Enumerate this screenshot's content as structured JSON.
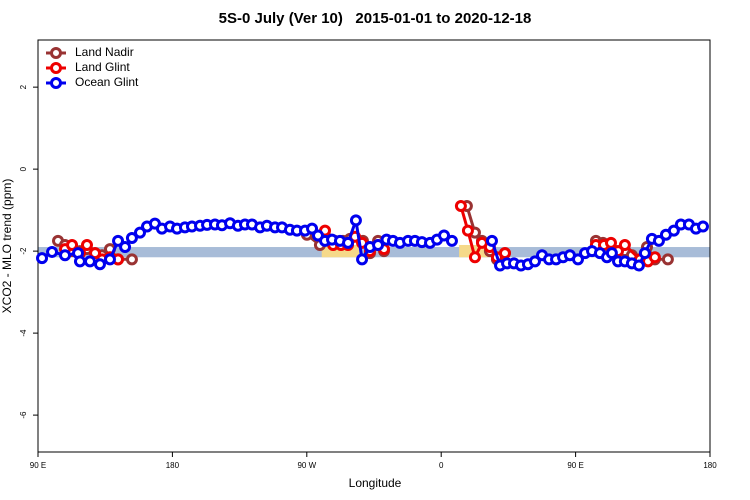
{
  "chart_data": {
    "type": "line",
    "title": "5S-0 July (Ver 10)   2015-01-01 to 2020-12-18",
    "xlabel": "Longitude",
    "ylabel": "XCO2 - MLO trend (ppm)",
    "xlim": [
      90,
      540
    ],
    "ylim": [
      -6.9,
      3.15
    ],
    "xticks": [
      {
        "value": 90,
        "label": "90 E"
      },
      180,
      {
        "value": 270,
        "label": "90 W"
      },
      {
        "value": 360,
        "label": "0"
      },
      {
        "value": 450,
        "label": "90 E"
      },
      {
        "value": 540,
        "label": "180"
      }
    ],
    "yticks": [
      2,
      0,
      -2,
      -4,
      -6
    ],
    "legend": "top-left",
    "reference_band": {
      "ylim": [
        -2.15,
        -1.9
      ],
      "color": "#a8bcd8"
    },
    "highlights": {
      "color": "#f5d98a",
      "regions": [
        {
          "xlim": [
            280,
            305
          ],
          "ylim": [
            -2.15,
            -1.85
          ]
        },
        {
          "xlim": [
            372,
            392
          ],
          "ylim": [
            -2.15,
            -1.85
          ]
        }
      ]
    },
    "series": [
      {
        "name": "Land Nadir",
        "color": "#993333",
        "x": [
          103.4,
          108.1,
          112.8,
          118.1,
          122.8,
          128.2,
          132.9,
          138.2,
          143.6,
          152.9,
          null,
          270.1,
          278.8,
          284.2,
          288.9,
          294.2,
          298.9,
          307.6,
          312.3,
          317.7,
          321.7,
          null,
          377.2,
          382.6,
          387.3,
          392.6,
          397.3,
          402.7,
          null,
          463.6,
          468.3,
          473.7,
          478.4,
          483.0,
          487.7,
          493.1,
          497.8,
          503.1,
          511.8
        ],
        "values": [
          -1.75,
          -1.85,
          -2.0,
          -2.0,
          -1.95,
          -2.05,
          -2.1,
          -1.95,
          -2.2,
          -2.2,
          null,
          -1.6,
          -1.85,
          -1.7,
          -1.75,
          -1.75,
          -1.7,
          -1.75,
          -2.05,
          -1.75,
          -2.0,
          null,
          -0.9,
          -1.55,
          -1.75,
          -2.0,
          -2.2,
          -2.05,
          null,
          -1.75,
          -1.8,
          -1.9,
          -2.0,
          -2.0,
          -2.1,
          -2.2,
          -1.9,
          -2.2,
          -2.2
        ]
      },
      {
        "name": "Land Glint",
        "color": "#ee0000",
        "x": [
          108.1,
          112.8,
          118.1,
          122.8,
          128.2,
          132.9,
          138.2,
          143.6,
          null,
          282.2,
          287.6,
          292.9,
          297.6,
          302.3,
          307.0,
          312.3,
          317.7,
          321.7,
          null,
          373.2,
          377.9,
          382.6,
          387.3,
          392.6,
          397.3,
          402.7,
          null,
          463.6,
          469.0,
          473.7,
          478.4,
          483.0,
          493.1,
          498.5,
          503.1
        ],
        "values": [
          -1.95,
          -1.85,
          -2.05,
          -1.85,
          -2.05,
          -2.2,
          -2.15,
          -2.2,
          null,
          -1.5,
          -1.85,
          -1.85,
          -1.85,
          -1.65,
          -1.8,
          -2.0,
          -1.85,
          -1.95,
          null,
          -0.9,
          -1.5,
          -2.15,
          -1.8,
          -1.9,
          -2.15,
          -2.05,
          null,
          -1.85,
          -1.85,
          -1.8,
          -2.0,
          -1.85,
          -2.2,
          -2.25,
          -2.15
        ]
      },
      {
        "name": "Ocean Glint",
        "color": "#0000ee",
        "x": [
          92.7,
          99.4,
          108.1,
          116.8,
          118.1,
          124.8,
          131.5,
          138.2,
          143.6,
          148.3,
          152.9,
          158.3,
          163.0,
          168.3,
          173.0,
          178.4,
          183.1,
          188.4,
          193.1,
          198.5,
          203.2,
          208.5,
          213.2,
          218.6,
          223.9,
          228.6,
          233.3,
          238.7,
          243.3,
          248.7,
          253.4,
          258.7,
          263.4,
          268.8,
          273.5,
          277.5,
          282.2,
          286.9,
          292.2,
          297.6,
          302.9,
          307.0,
          312.3,
          317.7,
          323.4,
          327.7,
          332.4,
          337.8,
          342.4,
          347.1,
          352.5,
          357.2,
          361.9,
          367.2,
          null,
          394.0,
          399.4,
          404.1,
          408.7,
          413.4,
          418.1,
          422.8,
          427.5,
          432.2,
          436.9,
          441.6,
          446.2,
          451.6,
          456.3,
          461.0,
          466.3,
          471.0,
          474.3,
          478.4,
          483.0,
          487.7,
          492.4,
          496.4,
          501.1,
          505.8,
          510.5,
          515.8,
          520.5,
          525.9,
          530.6,
          535.3
        ],
        "values": [
          -2.17,
          -2.02,
          -2.1,
          -2.05,
          -2.25,
          -2.25,
          -2.32,
          -2.2,
          -1.75,
          -1.9,
          -1.68,
          -1.55,
          -1.4,
          -1.33,
          -1.45,
          -1.4,
          -1.45,
          -1.42,
          -1.4,
          -1.38,
          -1.36,
          -1.35,
          -1.37,
          -1.32,
          -1.38,
          -1.35,
          -1.35,
          -1.42,
          -1.38,
          -1.42,
          -1.42,
          -1.48,
          -1.5,
          -1.5,
          -1.45,
          -1.62,
          -1.75,
          -1.72,
          -1.75,
          -1.8,
          -1.25,
          -2.2,
          -1.9,
          -1.85,
          -1.72,
          -1.75,
          -1.8,
          -1.75,
          -1.75,
          -1.78,
          -1.8,
          -1.72,
          -1.62,
          -1.75,
          null,
          -1.75,
          -2.35,
          -2.3,
          -2.3,
          -2.35,
          -2.32,
          -2.25,
          -2.1,
          -2.2,
          -2.2,
          -2.15,
          -2.1,
          -2.2,
          -2.05,
          -2.0,
          -2.05,
          -2.15,
          -2.05,
          -2.25,
          -2.25,
          -2.3,
          -2.35,
          -2.05,
          -1.7,
          -1.75,
          -1.6,
          -1.5,
          -1.35,
          -1.35,
          -1.45,
          -1.4
        ]
      }
    ]
  }
}
